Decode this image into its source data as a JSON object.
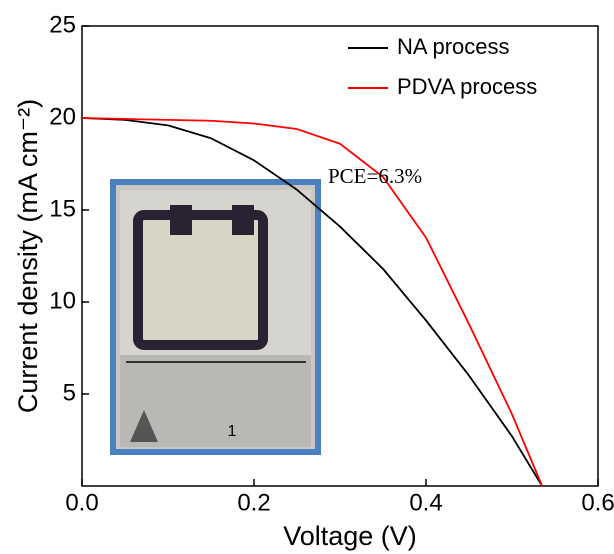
{
  "chart_data": {
    "type": "line",
    "x_label": "Voltage (V)",
    "y_label": "Current density (mA cm⁻²)",
    "annotation": "PCE=6.3%",
    "x": [
      0,
      0.05,
      0.1,
      0.15,
      0.2,
      0.25,
      0.3,
      0.35,
      0.4,
      0.45,
      0.5,
      0.535
    ],
    "series": [
      {
        "name": "NA process",
        "color": "#000000",
        "values": [
          20,
          19.9,
          19.6,
          18.9,
          17.7,
          16.1,
          14.1,
          11.8,
          9.0,
          6.0,
          2.7,
          0
        ]
      },
      {
        "name": "PDVA process",
        "color": "#ff0000",
        "values": [
          20,
          19.95,
          19.9,
          19.85,
          19.7,
          19.4,
          18.6,
          16.8,
          13.5,
          8.8,
          3.9,
          0
        ]
      }
    ],
    "xlim": [
      0,
      0.6
    ],
    "xticks": [
      {
        "value": 0,
        "label": "0.0"
      },
      0.2,
      0.4,
      0.6
    ],
    "ylim": [
      0,
      25
    ],
    "yticks": [
      5,
      10,
      15,
      20,
      25
    ],
    "legend": "top-right",
    "grid": false
  }
}
